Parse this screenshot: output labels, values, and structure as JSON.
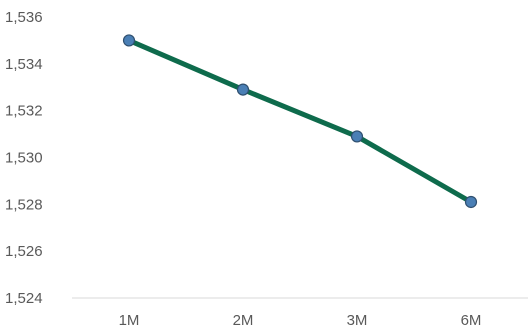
{
  "chart_data": {
    "type": "line",
    "categories": [
      "1M",
      "2M",
      "3M",
      "6M"
    ],
    "series": [
      {
        "values": [
          1535.0,
          1532.9,
          1530.9,
          1528.1
        ]
      }
    ],
    "y_ticks": [
      "1,524",
      "1,526",
      "1,528",
      "1,530",
      "1,532",
      "1,534",
      "1,536"
    ],
    "ylim": [
      1524,
      1536
    ],
    "grid": false,
    "legend": "none",
    "line_color": "#0e6b4c",
    "marker_fill": "#4a7fb5",
    "marker_stroke": "#2f4f6f",
    "axis_color": "#d9d9d9"
  }
}
